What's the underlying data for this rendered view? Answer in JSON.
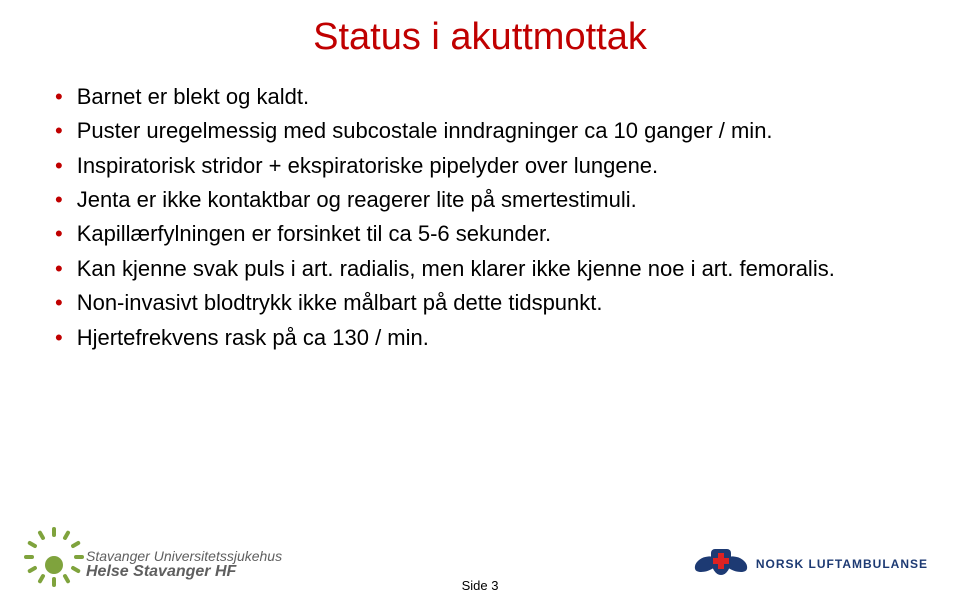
{
  "title": "Status i akuttmottak",
  "title_color": "#c00000",
  "bullet_color": "#c00000",
  "text_color": "#000000",
  "bullets": [
    "Barnet er blekt og kaldt.",
    "Puster uregelmessig med subcostale inndragninger ca 10 ganger / min.",
    "Inspiratorisk stridor + ekspiratoriske pipelyder over lungene.",
    "Jenta er ikke kontaktbar og reagerer lite på smertestimuli.",
    "Kapillærfylningen er forsinket til ca 5-6 sekunder.",
    "Kan kjenne svak puls i art. radialis, men klarer ikke kjenne noe i art. femoralis.",
    "Non-invasivt blodtrykk ikke målbart på dette tidspunkt.",
    "Hjertefrekvens rask på ca 130 / min."
  ],
  "page_label": "Side 3",
  "logo_left": {
    "line1": "Stavanger Universitetssjukehus",
    "line2": "Helse Stavanger HF",
    "accent_color": "#7fa33d",
    "text_color": "#5f5f5f"
  },
  "logo_right": {
    "text": "NORSK LUFTAMBULANSE",
    "primary_color": "#1d3a73",
    "cross_color": "#d22"
  },
  "background_color": "#ffffff",
  "title_fontsize": 38,
  "body_fontsize": 22
}
